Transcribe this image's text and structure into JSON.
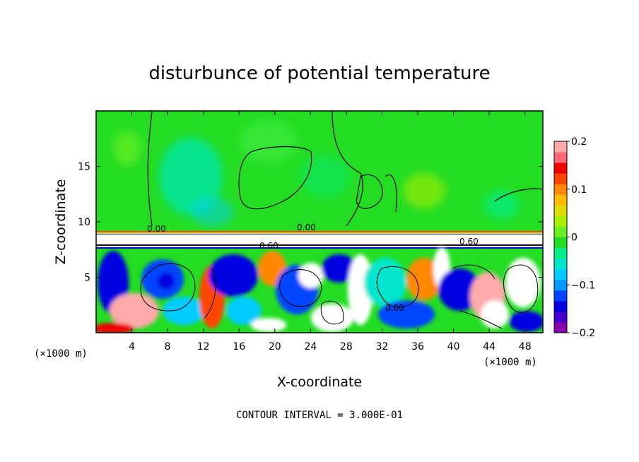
{
  "chart_data": {
    "type": "heatmap",
    "title": "disturbunce of potential temperature",
    "xlabel": "X-coordinate",
    "ylabel": "Z-coordinate",
    "x_unit_left": "(×1000 m)",
    "x_unit_right": "(×1000 m)",
    "xlim": [
      0,
      50
    ],
    "ylim": [
      0,
      20
    ],
    "x_ticks": [
      4,
      8,
      12,
      16,
      20,
      24,
      28,
      32,
      36,
      40,
      44,
      48
    ],
    "y_ticks": [
      5,
      10,
      15
    ],
    "x_tick_labels": [
      "4",
      "8",
      "12",
      "16",
      "20",
      "24",
      "28",
      "32",
      "36",
      "40",
      "44",
      "48"
    ],
    "y_tick_labels": [
      "5",
      "10",
      "15"
    ],
    "colorbar": {
      "range": [
        -0.2,
        0.2
      ],
      "tick_values": [
        0.2,
        0.1,
        0,
        -0.1,
        -0.2
      ],
      "tick_labels": [
        "0.2",
        "0.1",
        "0",
        "−0.1",
        "−0.2"
      ],
      "colors": [
        "#8800aa",
        "#4400cc",
        "#0000e0",
        "#0044ff",
        "#0099ff",
        "#00ccff",
        "#00e6cc",
        "#00ee88",
        "#22dd22",
        "#66ee22",
        "#aaee00",
        "#dddd00",
        "#ffbb00",
        "#ff8800",
        "#ff4400",
        "#ee0000",
        "#ff6677",
        "#ffaaaa"
      ]
    },
    "contour_interval_text": "CONTOUR INTERVAL = 3.000E-01",
    "contour_labels": [
      "0.00",
      "0.00",
      "0.60",
      "0.60",
      "0.00"
    ],
    "layers": {
      "upper_field_value": 0.0,
      "inversion_layer_z": [
        7.8,
        9.3
      ],
      "lower_turbulent_z": [
        0,
        7.8
      ]
    }
  }
}
